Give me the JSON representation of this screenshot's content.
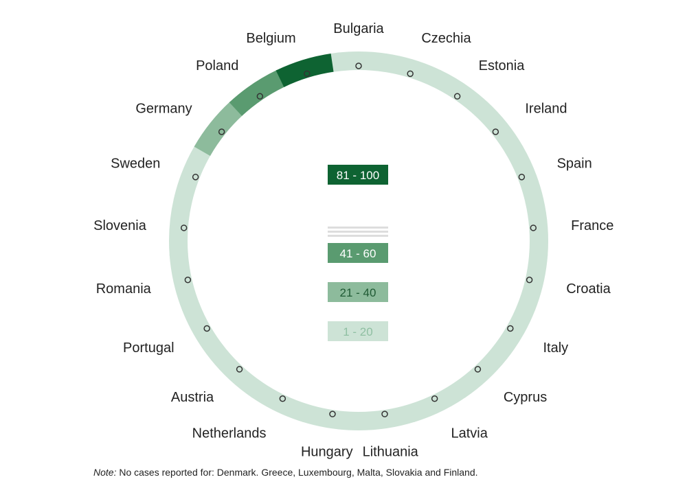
{
  "chart_data": {
    "type": "ring",
    "title": "",
    "categories": [
      "Bulgaria",
      "Czechia",
      "Estonia",
      "Ireland",
      "Spain",
      "France",
      "Croatia",
      "Italy",
      "Cyprus",
      "Latvia",
      "Lithuania",
      "Hungary",
      "Netherlands",
      "Austria",
      "Portugal",
      "Romania",
      "Slovenia",
      "Sweden",
      "Germany",
      "Poland",
      "Belgium"
    ],
    "band_index": [
      0,
      0,
      0,
      0,
      0,
      0,
      0,
      0,
      0,
      0,
      0,
      0,
      0,
      0,
      0,
      0,
      0,
      0,
      1,
      2,
      4
    ],
    "bands": [
      {
        "label": "1 - 20",
        "color": "#cde3d6",
        "text_color": "#8fbfa2"
      },
      {
        "label": "21 - 40",
        "color": "#8dbb9c",
        "text_color": "#1f5a34"
      },
      {
        "label": "41 - 60",
        "color": "#5a9b70",
        "text_color": "#ffffff"
      },
      {
        "label": "",
        "color": "#dddddd",
        "text_color": "#dddddd"
      },
      {
        "label": "81 - 100",
        "color": "#0e6332",
        "text_color": "#ffffff"
      }
    ],
    "legend_position": "center"
  },
  "note": {
    "prefix": "Note:",
    "text": " No cases reported for: Denmark. Greece, Luxembourg, Malta, Slovakia and Finland."
  }
}
